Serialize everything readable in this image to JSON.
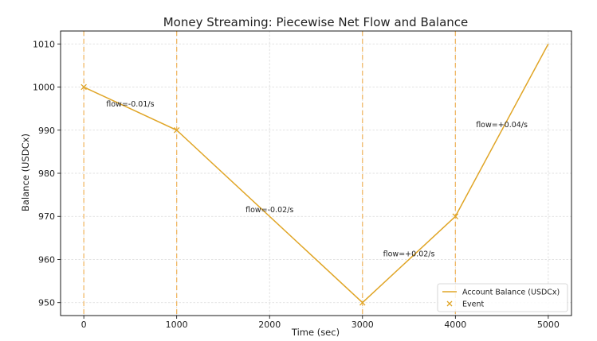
{
  "chart_data": {
    "type": "line",
    "title": "Money Streaming: Piecewise Net Flow and Balance",
    "xlabel": "Time (sec)",
    "ylabel": "Balance (USDCx)",
    "xlim": [
      -250,
      5250
    ],
    "ylim": [
      947,
      1013
    ],
    "xticks": [
      0,
      1000,
      2000,
      3000,
      4000,
      5000
    ],
    "yticks": [
      950,
      960,
      970,
      980,
      990,
      1000,
      1010
    ],
    "grid": true,
    "legend_position": "lower-right",
    "colors": {
      "line": "#e0a526",
      "event": "#e0a526",
      "event_lines": "#f0b35a",
      "grid": "#d9d9d9"
    },
    "series": [
      {
        "name": "Account Balance (USDCx)",
        "x": [
          0,
          1000,
          3000,
          4000,
          5000
        ],
        "y": [
          1000,
          990,
          950,
          970,
          1010
        ]
      },
      {
        "name": "Event",
        "marker": "x",
        "x": [
          0,
          1000,
          3000,
          4000
        ],
        "y": [
          1000,
          990,
          950,
          970
        ]
      }
    ],
    "event_lines_x": [
      0,
      1000,
      3000,
      4000
    ],
    "annotations": [
      {
        "text": "flow=-0.01/s",
        "x": 500,
        "y": 995.5
      },
      {
        "text": "flow=-0.02/s",
        "x": 2000,
        "y": 971
      },
      {
        "text": "flow=+0.02/s",
        "x": 3500,
        "y": 960.7
      },
      {
        "text": "flow=+0.04/s",
        "x": 4500,
        "y": 990.7
      }
    ]
  }
}
